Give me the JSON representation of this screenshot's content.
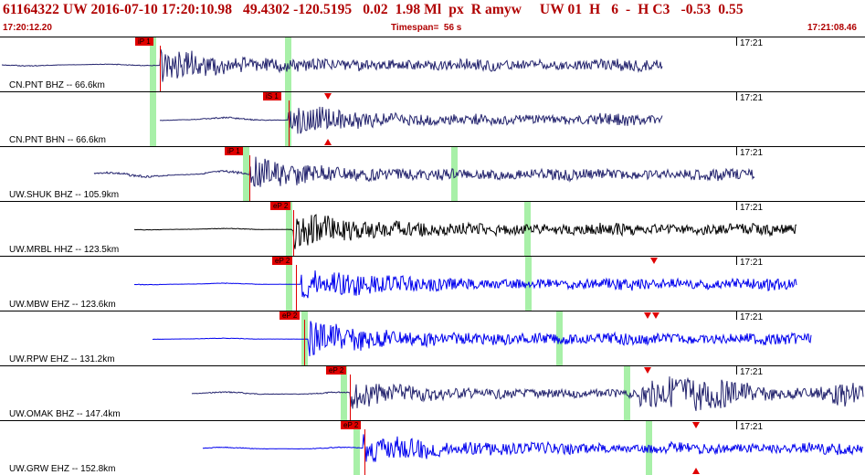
{
  "header": {
    "line1": "61164322 UW 2016-07-10 17:20:10.98   49.4302 -120.5195   0.02  1.98 Ml  px  R amyw     UW 01  H   6  -  H C3   -0.53  0.55",
    "start_time": "17:20:12.20",
    "timespan": "Timespan=  56 s",
    "end_time": "17:21:08.46"
  },
  "panels": [
    {
      "label": "CN.PNT BHZ -- 66.6km",
      "time": "17:21",
      "pick": "iP 1",
      "color": "#24246e"
    },
    {
      "label": "CN.PNT BHN -- 66.6km",
      "time": "17:21",
      "pick": "iS 1",
      "color": "#24246e"
    },
    {
      "label": "UW.SHUK BHZ -- 105.9km",
      "time": "17:21",
      "pick": "iP 1",
      "color": "#24246e"
    },
    {
      "label": "UW.MRBL HHZ -- 123.5km",
      "time": "17:21",
      "pick": "eP 2",
      "color": "#000000"
    },
    {
      "label": "UW.MBW EHZ -- 123.6km",
      "time": "17:21",
      "pick": "eP 2",
      "color": "#0000ee"
    },
    {
      "label": "UW.RPW EHZ -- 131.2km",
      "time": "17:21",
      "pick": "eP 2",
      "color": "#0000ee"
    },
    {
      "label": "UW.OMAK BHZ -- 147.4km",
      "time": "17:21",
      "pick": "eP 2",
      "color": "#24246e"
    },
    {
      "label": "UW.GRW EHZ -- 152.8km",
      "time": "17:21",
      "pick": "eP 2",
      "color": "#0000ee"
    }
  ]
}
